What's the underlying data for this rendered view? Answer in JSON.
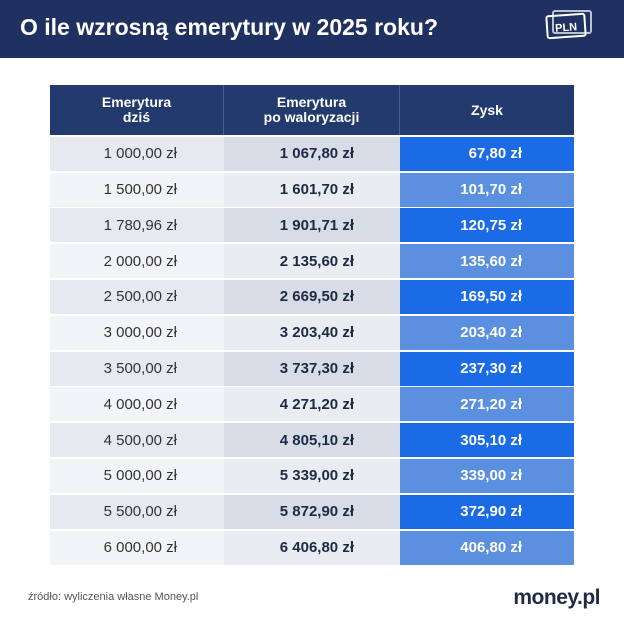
{
  "header": {
    "title": "O ile wzrosną emerytury w 2025 roku?",
    "icon_label": "PLN"
  },
  "table": {
    "columns": [
      [
        "Emerytura",
        "dziś"
      ],
      [
        "Emerytura",
        "po waloryzacji"
      ],
      [
        "Zysk"
      ]
    ],
    "rows": [
      [
        "1 000,00 zł",
        "1 067,80 zł",
        "67,80 zł"
      ],
      [
        "1 500,00 zł",
        "1 601,70 zł",
        "101,70 zł"
      ],
      [
        "1 780,96 zł",
        "1 901,71 zł",
        "120,75 zł"
      ],
      [
        "2 000,00 zł",
        "2 135,60 zł",
        "135,60 zł"
      ],
      [
        "2 500,00 zł",
        "2 669,50 zł",
        "169,50 zł"
      ],
      [
        "3 000,00 zł",
        "3 203,40 zł",
        "203,40 zł"
      ],
      [
        "3 500,00 zł",
        "3 737,30 zł",
        "237,30 zł"
      ],
      [
        "4 000,00 zł",
        "4 271,20 zł",
        "271,20 zł"
      ],
      [
        "4 500,00 zł",
        "4 805,10 zł",
        "305,10 zł"
      ],
      [
        "5 000,00 zł",
        "5 339,00 zł",
        "339,00 zł"
      ],
      [
        "5 500,00 zł",
        "5 872,90 zł",
        "372,90 zł"
      ],
      [
        "6 000,00 zł",
        "6 406,80 zł",
        "406,80 zł"
      ]
    ]
  },
  "footer": {
    "source": "źródło: wyliczenia własne Money.pl",
    "logo": "money.pl"
  }
}
